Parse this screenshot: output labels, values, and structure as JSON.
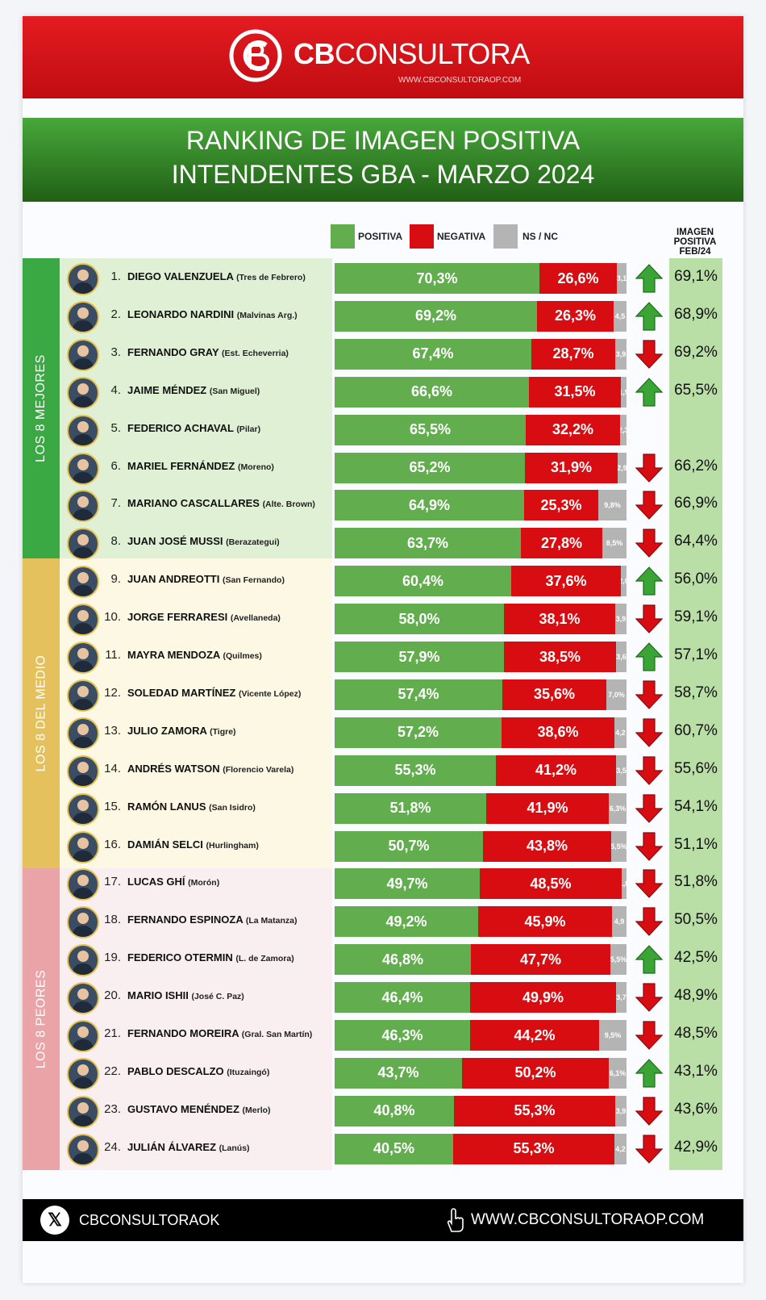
{
  "brand": {
    "name_bold": "CB",
    "name_rest": "CONSULTORA",
    "url": "WWW.CBCONSULTORAOP.COM"
  },
  "title": {
    "line1": "RANKING DE IMAGEN POSITIVA",
    "line2": "INTENDENTES GBA - MARZO 2024"
  },
  "legend": {
    "positive": "POSITIVA",
    "negative": "NEGATIVA",
    "nsnc": "NS / NC"
  },
  "feb_header": {
    "line1": "IMAGEN",
    "line2": "POSITIVA",
    "line3": "FEB/24"
  },
  "groups": {
    "top": "LOS 8 MEJORES",
    "middle": "LOS 8 DEL MEDIO",
    "bottom": "LOS 8 PEORES"
  },
  "colors": {
    "positive": "#62ad4e",
    "negative": "#d70d12",
    "nsnc": "#b4b4b4",
    "up": "#3aa435",
    "down": "#d70d12"
  },
  "footer": {
    "handle": "CBCONSULTORAOK",
    "url": "WWW.CBCONSULTORAOP.COM"
  },
  "chart_data": {
    "type": "bar",
    "stacked": true,
    "orientation": "horizontal",
    "title": "RANKING DE IMAGEN POSITIVA INTENDENTES GBA - MARZO 2024",
    "series_names": [
      "POSITIVA",
      "NEGATIVA",
      "NS / NC"
    ],
    "rows": [
      {
        "rank": "1.",
        "name": "DIEGO VALENZUELA",
        "district": "(Tres de Febrero)",
        "pos": 70.3,
        "neg": 26.6,
        "nc": 3.1,
        "pos_label": "70,3%",
        "neg_label": "26,6%",
        "nc_label": "3,1",
        "trend": "up",
        "feb": "69,1%"
      },
      {
        "rank": "2.",
        "name": "LEONARDO NARDINI",
        "district": "(Malvinas Arg.)",
        "pos": 69.2,
        "neg": 26.3,
        "nc": 4.5,
        "pos_label": "69,2%",
        "neg_label": "26,3%",
        "nc_label": "4,5",
        "trend": "up",
        "feb": "68,9%"
      },
      {
        "rank": "3.",
        "name": "FERNANDO GRAY",
        "district": "(Est. Echeverria)",
        "pos": 67.4,
        "neg": 28.7,
        "nc": 3.9,
        "pos_label": "67,4%",
        "neg_label": "28,7%",
        "nc_label": "3,9",
        "trend": "down",
        "feb": "69,2%"
      },
      {
        "rank": "4.",
        "name": "JAIME MÉNDEZ",
        "district": "(San Miguel)",
        "pos": 66.6,
        "neg": 31.5,
        "nc": 1.9,
        "pos_label": "66,6%",
        "neg_label": "31,5%",
        "nc_label": "1,9",
        "trend": "up",
        "feb": "65,5%"
      },
      {
        "rank": "5.",
        "name": "FEDERICO ACHAVAL",
        "district": "(Pilar)",
        "pos": 65.5,
        "neg": 32.2,
        "nc": 2.3,
        "pos_label": "65,5%",
        "neg_label": "32,2%",
        "nc_label": "2,3",
        "trend": "",
        "feb": ""
      },
      {
        "rank": "6.",
        "name": "MARIEL FERNÁNDEZ",
        "district": "(Moreno)",
        "pos": 65.2,
        "neg": 31.9,
        "nc": 2.9,
        "pos_label": "65,2%",
        "neg_label": "31,9%",
        "nc_label": "2,9",
        "trend": "down",
        "feb": "66,2%"
      },
      {
        "rank": "7.",
        "name": "MARIANO CASCALLARES",
        "district": "(Alte. Brown)",
        "pos": 64.9,
        "neg": 25.3,
        "nc": 9.8,
        "pos_label": "64,9%",
        "neg_label": "25,3%",
        "nc_label": "9,8%",
        "trend": "down",
        "feb": "66,9%"
      },
      {
        "rank": "8.",
        "name": "JUAN JOSÉ MUSSI",
        "district": "(Berazategui)",
        "pos": 63.7,
        "neg": 27.8,
        "nc": 8.5,
        "pos_label": "63,7%",
        "neg_label": "27,8%",
        "nc_label": "8,5%",
        "trend": "down",
        "feb": "64,4%"
      },
      {
        "rank": "9.",
        "name": "JUAN ANDREOTTI",
        "district": "(San Fernando)",
        "pos": 60.4,
        "neg": 37.6,
        "nc": 2.0,
        "pos_label": "60,4%",
        "neg_label": "37,6%",
        "nc_label": "2,0",
        "trend": "up",
        "feb": "56,0%"
      },
      {
        "rank": "10.",
        "name": "JORGE FERRARESI",
        "district": "(Avellaneda)",
        "pos": 58.0,
        "neg": 38.1,
        "nc": 3.9,
        "pos_label": "58,0%",
        "neg_label": "38,1%",
        "nc_label": "3,9",
        "trend": "down",
        "feb": "59,1%"
      },
      {
        "rank": "11.",
        "name": "MAYRA MENDOZA",
        "district": "(Quilmes)",
        "pos": 57.9,
        "neg": 38.5,
        "nc": 3.6,
        "pos_label": "57,9%",
        "neg_label": "38,5%",
        "nc_label": "3,6",
        "trend": "up",
        "feb": "57,1%"
      },
      {
        "rank": "12.",
        "name": "SOLEDAD MARTÍNEZ",
        "district": "(Vicente López)",
        "pos": 57.4,
        "neg": 35.6,
        "nc": 7.0,
        "pos_label": "57,4%",
        "neg_label": "35,6%",
        "nc_label": "7,0%",
        "trend": "down",
        "feb": "58,7%"
      },
      {
        "rank": "13.",
        "name": "JULIO ZAMORA",
        "district": "(Tigre)",
        "pos": 57.2,
        "neg": 38.6,
        "nc": 4.2,
        "pos_label": "57,2%",
        "neg_label": "38,6%",
        "nc_label": "4,2",
        "trend": "down",
        "feb": "60,7%"
      },
      {
        "rank": "14.",
        "name": "ANDRÉS WATSON",
        "district": "(Florencio Varela)",
        "pos": 55.3,
        "neg": 41.2,
        "nc": 3.5,
        "pos_label": "55,3%",
        "neg_label": "41,2%",
        "nc_label": "3,5",
        "trend": "down",
        "feb": "55,6%"
      },
      {
        "rank": "15.",
        "name": "RAMÓN LANUS",
        "district": "(San Isidro)",
        "pos": 51.8,
        "neg": 41.9,
        "nc": 6.3,
        "pos_label": "51,8%",
        "neg_label": "41,9%",
        "nc_label": "6,3%",
        "trend": "down",
        "feb": "54,1%"
      },
      {
        "rank": "16.",
        "name": "DAMIÁN SELCI",
        "district": "(Hurlingham)",
        "pos": 50.7,
        "neg": 43.8,
        "nc": 5.5,
        "pos_label": "50,7%",
        "neg_label": "43,8%",
        "nc_label": "5,5%",
        "trend": "down",
        "feb": "51,1%"
      },
      {
        "rank": "17.",
        "name": "LUCAS GHÍ",
        "district": "(Morón)",
        "pos": 49.7,
        "neg": 48.5,
        "nc": 1.8,
        "pos_label": "49,7%",
        "neg_label": "48,5%",
        "nc_label": "1,8",
        "trend": "down",
        "feb": "51,8%"
      },
      {
        "rank": "18.",
        "name": "FERNANDO ESPINOZA",
        "district": "(La Matanza)",
        "pos": 49.2,
        "neg": 45.9,
        "nc": 4.9,
        "pos_label": "49,2%",
        "neg_label": "45,9%",
        "nc_label": "4,9",
        "trend": "down",
        "feb": "50,5%"
      },
      {
        "rank": "19.",
        "name": "FEDERICO OTERMIN",
        "district": "(L. de Zamora)",
        "pos": 46.8,
        "neg": 47.7,
        "nc": 5.5,
        "pos_label": "46,8%",
        "neg_label": "47,7%",
        "nc_label": "5,5%",
        "trend": "up",
        "feb": "42,5%"
      },
      {
        "rank": "20.",
        "name": "MARIO ISHII",
        "district": "(José C. Paz)",
        "pos": 46.4,
        "neg": 49.9,
        "nc": 3.7,
        "pos_label": "46,4%",
        "neg_label": "49,9%",
        "nc_label": "3,7",
        "trend": "down",
        "feb": "48,9%"
      },
      {
        "rank": "21.",
        "name": "FERNANDO MOREIRA",
        "district": "(Gral. San Martín)",
        "pos": 46.3,
        "neg": 44.2,
        "nc": 9.5,
        "pos_label": "46,3%",
        "neg_label": "44,2%",
        "nc_label": "9,5%",
        "trend": "down",
        "feb": "48,5%"
      },
      {
        "rank": "22.",
        "name": "PABLO DESCALZO",
        "district": "(Ituzaingó)",
        "pos": 43.7,
        "neg": 50.2,
        "nc": 6.1,
        "pos_label": "43,7%",
        "neg_label": "50,2%",
        "nc_label": "6,1%",
        "trend": "up",
        "feb": "43,1%"
      },
      {
        "rank": "23.",
        "name": "GUSTAVO MENÉNDEZ",
        "district": "(Merlo)",
        "pos": 40.8,
        "neg": 55.3,
        "nc": 3.9,
        "pos_label": "40,8%",
        "neg_label": "55,3%",
        "nc_label": "3,9",
        "trend": "down",
        "feb": "43,6%"
      },
      {
        "rank": "24.",
        "name": "JULIÁN ÁLVAREZ",
        "district": "(Lanús)",
        "pos": 40.5,
        "neg": 55.3,
        "nc": 4.2,
        "pos_label": "40,5%",
        "neg_label": "55,3%",
        "nc_label": "4,2",
        "trend": "down",
        "feb": "42,9%"
      }
    ]
  }
}
